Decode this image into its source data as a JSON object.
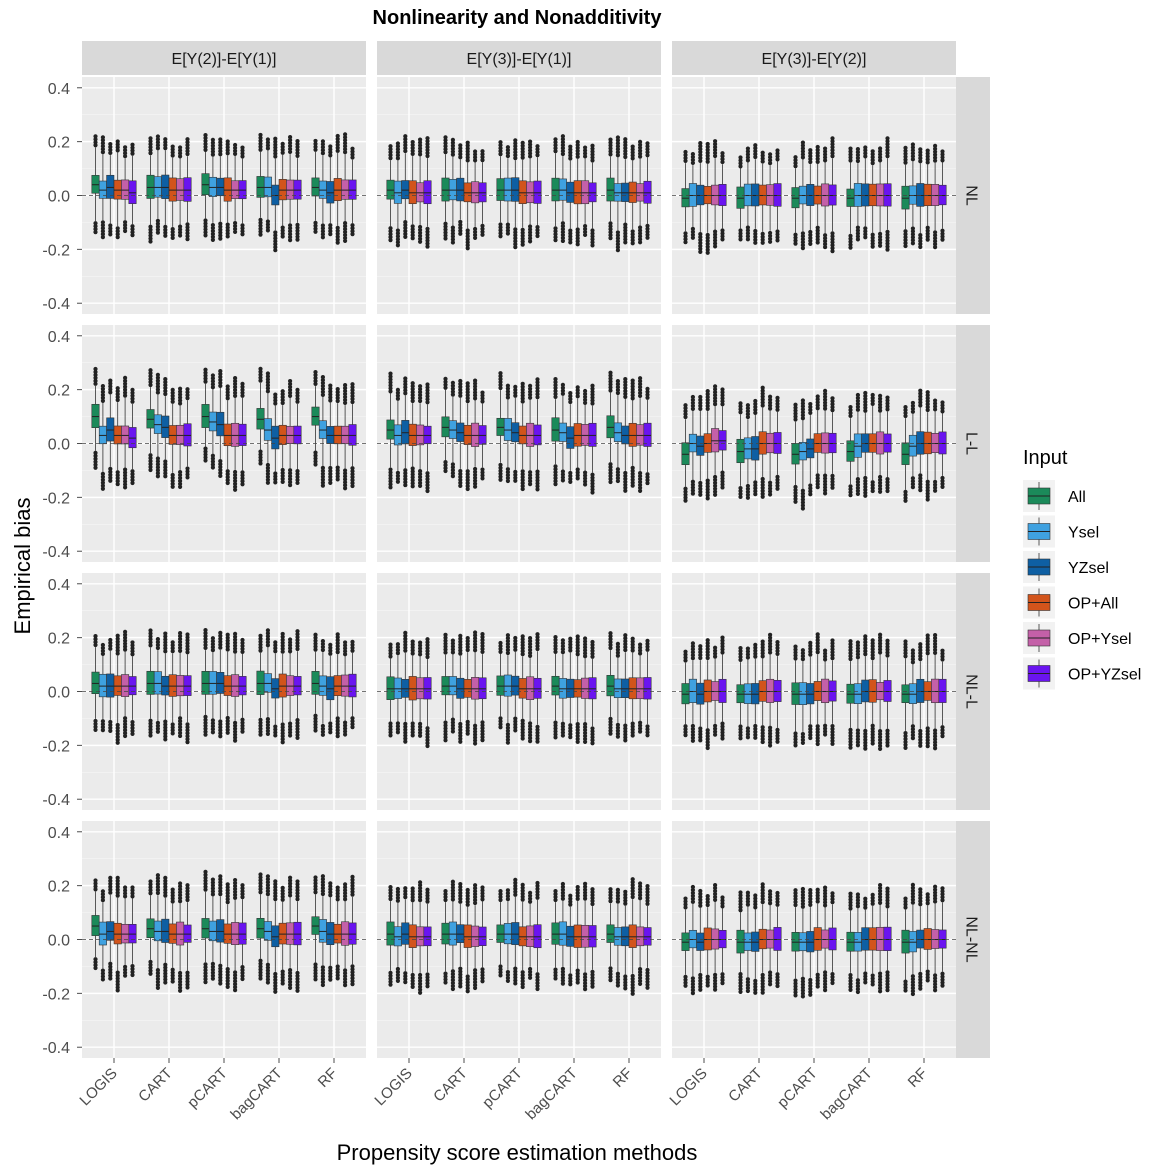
{
  "chart_data": {
    "type": "boxplot",
    "title": "Nonlinearity and Nonadditivity",
    "xlabel": "Propensity score estimation methods",
    "ylabel": "Empirical bias",
    "ylim": [
      -0.44,
      0.44
    ],
    "y_ticks": [
      "0.4",
      "0.2",
      "0.0",
      "-0.2",
      "-0.4"
    ],
    "y_tick_values": [
      0.4,
      0.2,
      0.0,
      -0.2,
      -0.4
    ],
    "reference_line": 0.0,
    "grid": true,
    "legend_position": "right",
    "legend_title": "Input",
    "facet_columns": [
      "E[Y(2)]-E[Y(1)]",
      "E[Y(3)]-E[Y(1)]",
      "E[Y(3)]-E[Y(2)]"
    ],
    "facet_rows": [
      "NL",
      "L-L",
      "NL-L",
      "NL-NL"
    ],
    "categories": [
      "LOGIS",
      "CART",
      "pCART",
      "bagCART",
      "RF"
    ],
    "series": [
      {
        "name": "All",
        "color": "#1B8A5A"
      },
      {
        "name": "Ysel",
        "color": "#3FA1E0"
      },
      {
        "name": "YZsel",
        "color": "#0E5FA3"
      },
      {
        "name": "OP+All",
        "color": "#D2541B"
      },
      {
        "name": "OP+Ysel",
        "color": "#C460A8"
      },
      {
        "name": "OP+YZsel",
        "color": "#6A14F0"
      }
    ],
    "panels": [
      {
        "row": "NL",
        "col": "E[Y(2)]-E[Y(1)]",
        "medians": [
          [
            0.04,
            0.02,
            0.03,
            0.02,
            0.02,
            0.01
          ],
          [
            0.03,
            0.03,
            0.03,
            0.02,
            0.02,
            0.02
          ],
          [
            0.04,
            0.03,
            0.03,
            0.02,
            0.02,
            0.02
          ],
          [
            0.03,
            0.03,
            0.0,
            0.02,
            0.02,
            0.02
          ],
          [
            0.03,
            0.02,
            0.01,
            0.02,
            0.02,
            0.02
          ]
        ]
      },
      {
        "row": "NL",
        "col": "E[Y(3)]-E[Y(1)]",
        "medians": [
          [
            0.02,
            0.01,
            0.02,
            0.01,
            0.01,
            0.01
          ],
          [
            0.02,
            0.02,
            0.02,
            0.01,
            0.01,
            0.01
          ],
          [
            0.02,
            0.02,
            0.02,
            0.01,
            0.01,
            0.01
          ],
          [
            0.02,
            0.02,
            0.01,
            0.01,
            0.01,
            0.01
          ],
          [
            0.02,
            0.01,
            0.01,
            0.01,
            0.01,
            0.01
          ]
        ]
      },
      {
        "row": "NL",
        "col": "E[Y(3)]-E[Y(2)]",
        "medians": [
          [
            -0.01,
            0.0,
            0.0,
            0.0,
            0.0,
            0.0
          ],
          [
            -0.01,
            0.0,
            0.0,
            0.0,
            0.0,
            0.0
          ],
          [
            -0.01,
            0.0,
            0.0,
            0.0,
            0.0,
            0.0
          ],
          [
            -0.01,
            0.0,
            0.0,
            0.0,
            0.0,
            0.0
          ],
          [
            -0.01,
            0.0,
            0.0,
            0.0,
            0.0,
            0.0
          ]
        ]
      },
      {
        "row": "L-L",
        "col": "E[Y(2)]-E[Y(1)]",
        "medians": [
          [
            0.1,
            0.03,
            0.05,
            0.03,
            0.03,
            0.02
          ],
          [
            0.09,
            0.07,
            0.06,
            0.03,
            0.03,
            0.03
          ],
          [
            0.1,
            0.08,
            0.07,
            0.03,
            0.03,
            0.03
          ],
          [
            0.09,
            0.05,
            0.02,
            0.03,
            0.03,
            0.03
          ],
          [
            0.1,
            0.05,
            0.03,
            0.03,
            0.03,
            0.03
          ]
        ]
      },
      {
        "row": "L-L",
        "col": "E[Y(3)]-E[Y(1)]",
        "medians": [
          [
            0.05,
            0.03,
            0.04,
            0.03,
            0.03,
            0.03
          ],
          [
            0.06,
            0.05,
            0.04,
            0.03,
            0.03,
            0.03
          ],
          [
            0.06,
            0.05,
            0.04,
            0.03,
            0.03,
            0.03
          ],
          [
            0.05,
            0.04,
            0.02,
            0.03,
            0.03,
            0.03
          ],
          [
            0.06,
            0.04,
            0.03,
            0.03,
            0.03,
            0.03
          ]
        ]
      },
      {
        "row": "L-L",
        "col": "E[Y(3)]-E[Y(2)]",
        "medians": [
          [
            -0.04,
            0.0,
            -0.01,
            0.0,
            0.01,
            0.01
          ],
          [
            -0.03,
            -0.02,
            -0.02,
            0.0,
            0.0,
            0.0
          ],
          [
            -0.04,
            -0.03,
            -0.02,
            0.0,
            0.0,
            0.0
          ],
          [
            -0.03,
            -0.01,
            0.0,
            0.0,
            0.0,
            0.0
          ],
          [
            -0.04,
            -0.01,
            0.0,
            0.0,
            0.0,
            0.0
          ]
        ]
      },
      {
        "row": "NL-L",
        "col": "E[Y(2)]-E[Y(1)]",
        "medians": [
          [
            0.03,
            0.02,
            0.02,
            0.02,
            0.02,
            0.02
          ],
          [
            0.03,
            0.03,
            0.02,
            0.02,
            0.02,
            0.02
          ],
          [
            0.03,
            0.03,
            0.03,
            0.02,
            0.02,
            0.02
          ],
          [
            0.03,
            0.03,
            0.01,
            0.02,
            0.02,
            0.02
          ],
          [
            0.03,
            0.02,
            0.01,
            0.02,
            0.02,
            0.02
          ]
        ]
      },
      {
        "row": "NL-L",
        "col": "E[Y(3)]-E[Y(1)]",
        "medians": [
          [
            0.01,
            0.01,
            0.01,
            0.01,
            0.01,
            0.01
          ],
          [
            0.02,
            0.02,
            0.01,
            0.01,
            0.01,
            0.01
          ],
          [
            0.02,
            0.02,
            0.02,
            0.01,
            0.01,
            0.01
          ],
          [
            0.02,
            0.01,
            0.01,
            0.01,
            0.01,
            0.01
          ],
          [
            0.02,
            0.01,
            0.01,
            0.01,
            0.01,
            0.01
          ]
        ]
      },
      {
        "row": "NL-L",
        "col": "E[Y(3)]-E[Y(2)]",
        "medians": [
          [
            -0.01,
            0.0,
            -0.01,
            0.0,
            0.0,
            0.0
          ],
          [
            -0.01,
            -0.01,
            -0.01,
            0.0,
            0.0,
            0.0
          ],
          [
            -0.01,
            -0.01,
            -0.01,
            0.0,
            0.0,
            0.0
          ],
          [
            -0.01,
            -0.01,
            0.0,
            0.0,
            0.0,
            0.0
          ],
          [
            -0.01,
            -0.01,
            0.0,
            0.0,
            0.0,
            0.0
          ]
        ]
      },
      {
        "row": "NL-NL",
        "col": "E[Y(2)]-E[Y(1)]",
        "medians": [
          [
            0.05,
            0.02,
            0.03,
            0.02,
            0.02,
            0.02
          ],
          [
            0.04,
            0.03,
            0.03,
            0.02,
            0.02,
            0.02
          ],
          [
            0.04,
            0.03,
            0.03,
            0.02,
            0.02,
            0.02
          ],
          [
            0.04,
            0.03,
            0.01,
            0.02,
            0.02,
            0.02
          ],
          [
            0.05,
            0.03,
            0.02,
            0.02,
            0.02,
            0.02
          ]
        ]
      },
      {
        "row": "NL-NL",
        "col": "E[Y(3)]-E[Y(1)]",
        "medians": [
          [
            0.02,
            0.01,
            0.02,
            0.01,
            0.01,
            0.01
          ],
          [
            0.02,
            0.02,
            0.02,
            0.01,
            0.01,
            0.01
          ],
          [
            0.02,
            0.02,
            0.02,
            0.01,
            0.01,
            0.01
          ],
          [
            0.02,
            0.02,
            0.01,
            0.01,
            0.01,
            0.01
          ],
          [
            0.02,
            0.01,
            0.01,
            0.01,
            0.01,
            0.01
          ]
        ]
      },
      {
        "row": "NL-NL",
        "col": "E[Y(3)]-E[Y(2)]",
        "medians": [
          [
            -0.01,
            0.0,
            -0.01,
            0.0,
            0.0,
            0.0
          ],
          [
            -0.01,
            -0.01,
            -0.01,
            0.0,
            0.0,
            0.0
          ],
          [
            -0.01,
            -0.01,
            -0.01,
            0.0,
            0.0,
            0.0
          ],
          [
            -0.01,
            -0.01,
            0.0,
            0.0,
            0.0,
            0.0
          ],
          [
            -0.01,
            -0.01,
            0.0,
            0.0,
            0.0,
            0.0
          ]
        ]
      }
    ]
  }
}
